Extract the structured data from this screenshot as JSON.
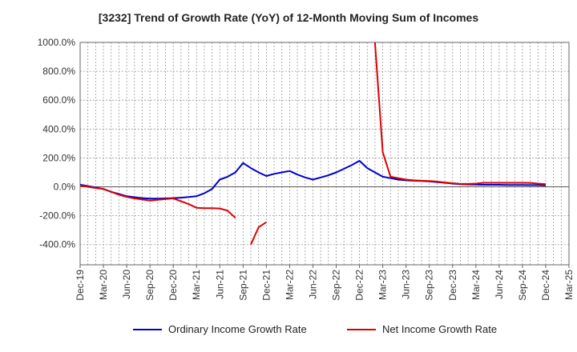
{
  "title": "[3232]  Trend of Growth Rate (YoY) of 12-Month Moving Sum of Incomes",
  "chart_data": {
    "type": "line",
    "title": "[3232]  Trend of Growth Rate (YoY) of 12-Month Moving Sum of Incomes",
    "xlabel": "",
    "ylabel": "",
    "ylim": [
      -540,
      1000
    ],
    "xlim": [
      "Dec-19",
      "Mar-25"
    ],
    "grid": true,
    "legend_placement": "bottom",
    "x_tick_labels": [
      "Dec-19",
      "Mar-20",
      "Jun-20",
      "Sep-20",
      "Dec-20",
      "Mar-21",
      "Jun-21",
      "Sep-21",
      "Dec-21",
      "Mar-22",
      "Jun-22",
      "Sep-22",
      "Dec-22",
      "Mar-23",
      "Jun-23",
      "Sep-23",
      "Dec-23",
      "Mar-24",
      "Jun-24",
      "Sep-24",
      "Dec-24",
      "Mar-25"
    ],
    "y_ticks": [
      -400,
      -200,
      0,
      200,
      400,
      600,
      800,
      1000
    ],
    "y_tick_labels": [
      "-400.0%",
      "-200.0%",
      "0.0%",
      "200.0%",
      "400.0%",
      "600.0%",
      "800.0%",
      "1000.0%"
    ],
    "x": [
      "Dec-19",
      "Jan-20",
      "Feb-20",
      "Mar-20",
      "Apr-20",
      "May-20",
      "Jun-20",
      "Jul-20",
      "Aug-20",
      "Sep-20",
      "Oct-20",
      "Nov-20",
      "Dec-20",
      "Jan-21",
      "Feb-21",
      "Mar-21",
      "Apr-21",
      "May-21",
      "Jun-21",
      "Jul-21",
      "Aug-21",
      "Sep-21",
      "Oct-21",
      "Nov-21",
      "Dec-21",
      "Jan-22",
      "Feb-22",
      "Mar-22",
      "Apr-22",
      "May-22",
      "Jun-22",
      "Jul-22",
      "Aug-22",
      "Sep-22",
      "Oct-22",
      "Nov-22",
      "Dec-22",
      "Jan-23",
      "Feb-23",
      "Mar-23",
      "Apr-23",
      "May-23",
      "Jun-23",
      "Jul-23",
      "Aug-23",
      "Sep-23",
      "Oct-23",
      "Nov-23",
      "Dec-23",
      "Jan-24",
      "Feb-24",
      "Mar-24",
      "Apr-24",
      "May-24",
      "Jun-24",
      "Jul-24",
      "Aug-24",
      "Sep-24",
      "Oct-24",
      "Nov-24",
      "Dec-24"
    ],
    "series": [
      {
        "name": "Ordinary Income Growth Rate",
        "color": "#0000cc",
        "values": [
          15,
          5,
          -5,
          -15,
          -35,
          -50,
          -65,
          -72,
          -78,
          -82,
          -82,
          -80,
          -78,
          -75,
          -70,
          -65,
          -45,
          -15,
          50,
          70,
          100,
          165,
          130,
          100,
          75,
          90,
          100,
          110,
          85,
          65,
          50,
          65,
          80,
          100,
          125,
          150,
          180,
          130,
          100,
          70,
          60,
          50,
          45,
          42,
          40,
          38,
          33,
          28,
          22,
          18,
          16,
          15,
          14,
          14,
          14,
          13,
          13,
          13,
          12,
          12,
          10
        ]
      },
      {
        "name": "Net Income Growth Rate",
        "color": "#dd0000",
        "values": [
          10,
          0,
          -8,
          -15,
          -35,
          -55,
          -70,
          -80,
          -88,
          -95,
          -90,
          -85,
          -80,
          -100,
          -120,
          -145,
          -148,
          -148,
          -150,
          -165,
          -215,
          null,
          -400,
          -280,
          -245,
          null,
          null,
          null,
          null,
          null,
          null,
          null,
          null,
          null,
          null,
          null,
          null,
          null,
          1000,
          240,
          70,
          60,
          50,
          45,
          42,
          40,
          36,
          30,
          25,
          20,
          20,
          22,
          28,
          28,
          28,
          28,
          28,
          28,
          27,
          22,
          18
        ]
      }
    ]
  }
}
